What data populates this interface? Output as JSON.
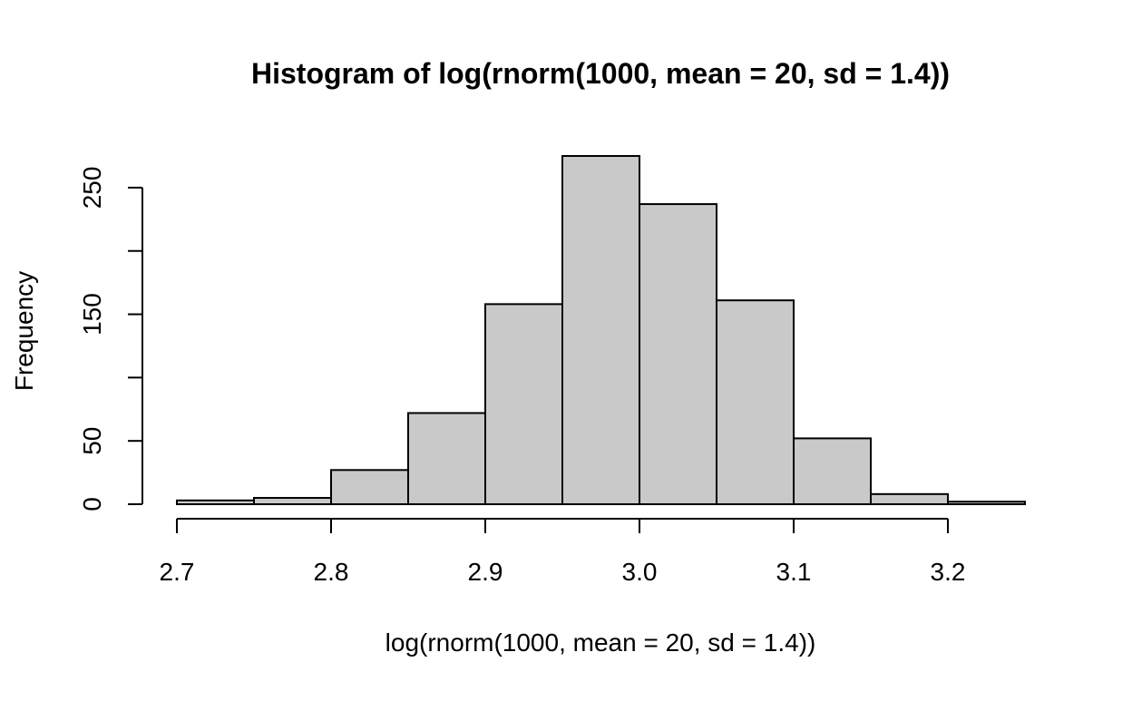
{
  "chart_data": {
    "type": "bar",
    "title": "Histogram of log(rnorm(1000, mean = 20, sd = 1.4))",
    "xlabel": "log(rnorm(1000, mean = 20, sd = 1.4))",
    "ylabel": "Frequency",
    "bin_width": 0.05,
    "bins": [
      {
        "x0": 2.7,
        "x1": 2.75,
        "count": 3
      },
      {
        "x0": 2.75,
        "x1": 2.8,
        "count": 5
      },
      {
        "x0": 2.8,
        "x1": 2.85,
        "count": 27
      },
      {
        "x0": 2.85,
        "x1": 2.9,
        "count": 72
      },
      {
        "x0": 2.9,
        "x1": 2.95,
        "count": 158
      },
      {
        "x0": 2.95,
        "x1": 3.0,
        "count": 275
      },
      {
        "x0": 3.0,
        "x1": 3.05,
        "count": 237
      },
      {
        "x0": 3.05,
        "x1": 3.1,
        "count": 161
      },
      {
        "x0": 3.1,
        "x1": 3.15,
        "count": 52
      },
      {
        "x0": 3.15,
        "x1": 3.2,
        "count": 8
      },
      {
        "x0": 3.2,
        "x1": 3.25,
        "count": 2
      }
    ],
    "xlim": [
      2.7,
      3.25
    ],
    "ylim": [
      0,
      275
    ],
    "x_ticks": [
      2.7,
      2.8,
      2.9,
      3.0,
      3.1,
      3.2
    ],
    "x_tick_labels": [
      "2.7",
      "2.8",
      "2.9",
      "3.0",
      "3.1",
      "3.2"
    ],
    "y_ticks": [
      0,
      50,
      100,
      150,
      200,
      250
    ],
    "y_tick_labels": [
      "0",
      "50",
      "",
      "150",
      "",
      "250"
    ],
    "bar_fill": "#c9c9c9",
    "bar_stroke": "#000000",
    "grid": false
  }
}
